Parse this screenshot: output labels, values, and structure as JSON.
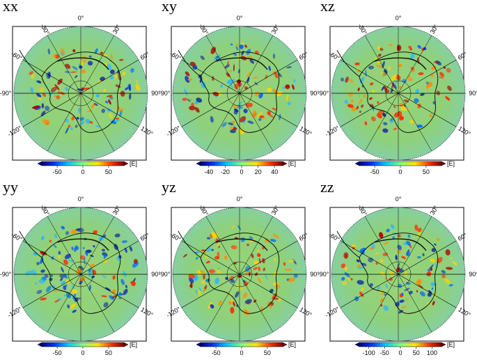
{
  "chart_data": [
    {
      "type": "heatmap",
      "title": "xx",
      "colorbar": {
        "range": [
          -80,
          80
        ],
        "ticks": [
          -50,
          0,
          50
        ],
        "unit": "[E]"
      },
      "features": {
        "dominant_sign": "mixed"
      },
      "angle_labels": [
        "-30°",
        "0°",
        "30°",
        "60°",
        "90°",
        "120°",
        "-120°",
        "-90°",
        "-60°"
      ]
    },
    {
      "type": "heatmap",
      "title": "xy",
      "colorbar": {
        "range": [
          -50,
          50
        ],
        "ticks": [
          -40,
          -20,
          0,
          20,
          40
        ],
        "unit": "[E]"
      },
      "features": {
        "dominant_sign": "mixed"
      },
      "angle_labels": [
        "-30°",
        "0°",
        "30°",
        "60°",
        "90°",
        "120°",
        "-120°",
        "-90°",
        "-60°"
      ]
    },
    {
      "type": "heatmap",
      "title": "xz",
      "colorbar": {
        "range": [
          -80,
          80
        ],
        "ticks": [
          -50,
          0,
          50
        ],
        "unit": "[E]"
      },
      "features": {
        "dominant_sign": "positive"
      },
      "angle_labels": [
        "-30°",
        "0°",
        "30°",
        "60°",
        "90°",
        "120°",
        "-120°",
        "-90°",
        "-60°"
      ]
    },
    {
      "type": "heatmap",
      "title": "yy",
      "colorbar": {
        "range": [
          -80,
          80
        ],
        "ticks": [
          -50,
          0,
          50
        ],
        "unit": "[E]"
      },
      "features": {
        "dominant_sign": "negative"
      },
      "angle_labels": [
        "-30°",
        "0°",
        "30°",
        "60°",
        "90°",
        "120°",
        "-120°",
        "-90°",
        "-60°"
      ]
    },
    {
      "type": "heatmap",
      "title": "yz",
      "colorbar": {
        "range": [
          -80,
          80
        ],
        "ticks": [
          -50,
          0,
          50
        ],
        "unit": "[E]"
      },
      "features": {
        "dominant_sign": "positive"
      },
      "angle_labels": [
        "-30°",
        "0°",
        "30°",
        "60°",
        "90°",
        "120°",
        "-120°",
        "-90°",
        "-60°"
      ]
    },
    {
      "type": "heatmap",
      "title": "zz",
      "colorbar": {
        "range": [
          -130,
          130
        ],
        "ticks": [
          -100,
          -50,
          0,
          50,
          100
        ],
        "unit": "[E]"
      },
      "features": {
        "dominant_sign": "mixed"
      },
      "angle_labels": [
        "-30°",
        "0°",
        "30°",
        "60°",
        "90°",
        "120°",
        "-120°",
        "-90°",
        "-60°"
      ]
    }
  ],
  "colors": {
    "background_field": "#8fd17a",
    "positive_strong": "#b40000",
    "negative_strong": "#0a2a9a",
    "neutral": "#86d07e"
  }
}
